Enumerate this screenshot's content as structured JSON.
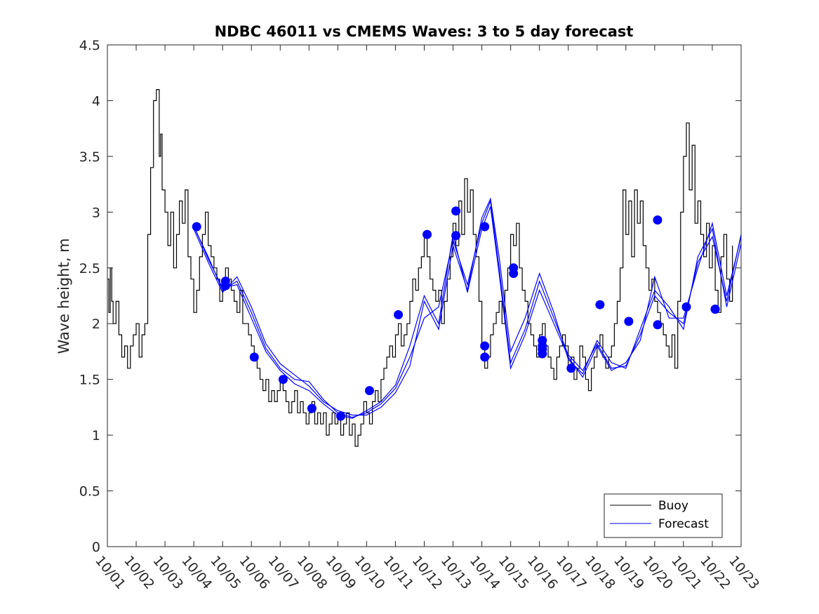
{
  "chart_data": {
    "type": "line",
    "title": "NDBC 46011 vs CMEMS Waves: 3 to 5 day forecast",
    "xlabel": "",
    "ylabel": "Wave height, m",
    "x_unit": "days since 10/01 00:00",
    "xlim": [
      0,
      22
    ],
    "ylim": [
      0,
      4.5
    ],
    "x_ticks": [
      0,
      1,
      2,
      3,
      4,
      5,
      6,
      7,
      8,
      9,
      10,
      11,
      12,
      13,
      14,
      15,
      16,
      17,
      18,
      19,
      20,
      21,
      22
    ],
    "x_tick_labels": [
      "10/01",
      "10/02",
      "10/03",
      "10/04",
      "10/05",
      "10/06",
      "10/07",
      "10/08",
      "10/09",
      "10/10",
      "10/11",
      "10/12",
      "10/13",
      "10/14",
      "10/15",
      "10/16",
      "10/17",
      "10/18",
      "10/19",
      "10/20",
      "10/21",
      "10/22",
      "10/23"
    ],
    "y_ticks": [
      0,
      0.5,
      1,
      1.5,
      2,
      2.5,
      3,
      3.5,
      4,
      4.5
    ],
    "y_tick_labels": [
      "0",
      "0.5",
      "1",
      "1.5",
      "2",
      "2.5",
      "3",
      "3.5",
      "4",
      "4.5"
    ],
    "grid": false,
    "legend": {
      "location": "bottom-right",
      "entries": [
        {
          "label": "Buoy",
          "color": "#000000"
        },
        {
          "label": "Forecast",
          "color": "#0000ff"
        }
      ]
    },
    "buoy": {
      "name": "Buoy",
      "color": "#000000",
      "x": [
        0,
        0.05,
        0.1,
        0.15,
        0.2,
        0.3,
        0.4,
        0.5,
        0.6,
        0.7,
        0.8,
        0.9,
        1.0,
        1.1,
        1.2,
        1.3,
        1.4,
        1.5,
        1.6,
        1.7,
        1.8,
        1.85,
        1.9,
        2.0,
        2.1,
        2.2,
        2.3,
        2.4,
        2.5,
        2.6,
        2.7,
        2.8,
        2.9,
        3.0,
        3.1,
        3.2,
        3.3,
        3.4,
        3.5,
        3.6,
        3.7,
        3.8,
        3.9,
        4.0,
        4.1,
        4.2,
        4.3,
        4.4,
        4.5,
        4.6,
        4.7,
        4.8,
        4.9,
        5.0,
        5.1,
        5.2,
        5.3,
        5.4,
        5.5,
        5.6,
        5.7,
        5.8,
        5.9,
        6.0,
        6.1,
        6.2,
        6.3,
        6.4,
        6.5,
        6.6,
        6.7,
        6.8,
        6.9,
        7.0,
        7.1,
        7.2,
        7.3,
        7.4,
        7.5,
        7.6,
        7.7,
        7.8,
        7.9,
        8.0,
        8.1,
        8.2,
        8.3,
        8.4,
        8.5,
        8.6,
        8.7,
        8.8,
        8.9,
        9.0,
        9.1,
        9.2,
        9.3,
        9.4,
        9.5,
        9.6,
        9.7,
        9.8,
        9.9,
        10.0,
        10.1,
        10.2,
        10.3,
        10.4,
        10.5,
        10.6,
        10.7,
        10.8,
        10.9,
        11.0,
        11.1,
        11.2,
        11.3,
        11.4,
        11.5,
        11.6,
        11.7,
        11.8,
        11.9,
        12.0,
        12.1,
        12.2,
        12.3,
        12.4,
        12.5,
        12.6,
        12.7,
        12.8,
        12.9,
        13.0,
        13.1,
        13.2,
        13.3,
        13.4,
        13.5,
        13.6,
        13.7,
        13.8,
        13.9,
        14.0,
        14.1,
        14.2,
        14.3,
        14.4,
        14.5,
        14.6,
        14.7,
        14.8,
        14.9,
        15.0,
        15.1,
        15.2,
        15.3,
        15.4,
        15.5,
        15.6,
        15.7,
        15.8,
        15.9,
        16.0,
        16.1,
        16.2,
        16.3,
        16.4,
        16.5,
        16.6,
        16.7,
        16.8,
        16.9,
        17.0,
        17.1,
        17.2,
        17.3,
        17.4,
        17.5,
        17.6,
        17.7,
        17.8,
        17.9,
        18.0,
        18.1,
        18.2,
        18.3,
        18.4,
        18.5,
        18.6,
        18.7,
        18.8,
        18.9,
        19.0,
        19.1,
        19.2,
        19.3,
        19.4,
        19.5,
        19.6,
        19.7,
        19.8,
        19.9,
        20.0,
        20.1,
        20.2,
        20.3,
        20.4,
        20.5,
        20.6,
        20.7,
        20.8,
        20.9,
        21.0,
        21.1,
        21.2,
        21.3,
        21.4,
        21.5,
        21.6,
        21.7
      ],
      "values": [
        2.4,
        2.1,
        2.5,
        2.2,
        2.0,
        2.2,
        1.9,
        1.7,
        1.8,
        1.6,
        1.8,
        1.9,
        2.0,
        1.7,
        1.9,
        2.0,
        2.8,
        3.4,
        4.0,
        4.1,
        3.5,
        3.7,
        3.2,
        3.0,
        2.7,
        3.0,
        2.5,
        2.8,
        3.1,
        2.9,
        3.2,
        2.6,
        2.4,
        2.1,
        2.3,
        2.6,
        2.8,
        3.0,
        2.7,
        2.6,
        2.5,
        2.4,
        2.2,
        2.3,
        2.5,
        2.4,
        2.3,
        2.2,
        2.1,
        2.3,
        2.0,
        2.0,
        1.9,
        1.8,
        1.7,
        1.6,
        1.5,
        1.4,
        1.5,
        1.3,
        1.4,
        1.3,
        1.4,
        1.5,
        1.4,
        1.3,
        1.2,
        1.3,
        1.4,
        1.2,
        1.3,
        1.2,
        1.1,
        1.2,
        1.3,
        1.1,
        1.2,
        1.1,
        1.2,
        1.0,
        1.1,
        1.2,
        1.1,
        1.2,
        1.0,
        1.1,
        1.2,
        1.0,
        1.1,
        0.9,
        1.0,
        1.1,
        1.3,
        1.2,
        1.1,
        1.3,
        1.4,
        1.3,
        1.5,
        1.6,
        1.7,
        1.8,
        1.7,
        1.9,
        2.0,
        1.8,
        1.9,
        2.0,
        2.2,
        2.4,
        2.3,
        2.5,
        2.6,
        2.8,
        2.6,
        2.4,
        2.3,
        2.2,
        2.3,
        2.0,
        2.2,
        2.4,
        2.6,
        2.9,
        2.7,
        3.1,
        2.8,
        3.3,
        3.0,
        3.2,
        2.8,
        2.6,
        2.2,
        1.8,
        1.6,
        1.7,
        1.9,
        2.0,
        2.1,
        2.2,
        2.0,
        2.3,
        2.5,
        2.8,
        2.7,
        2.9,
        2.5,
        2.3,
        2.2,
        2.0,
        1.9,
        1.8,
        1.7,
        1.9,
        2.0,
        1.8,
        1.7,
        1.6,
        1.5,
        1.7,
        1.8,
        1.9,
        1.8,
        1.6,
        1.7,
        1.5,
        1.6,
        1.8,
        1.7,
        1.5,
        1.4,
        1.6,
        1.7,
        1.8,
        1.9,
        1.7,
        1.6,
        1.7,
        1.8,
        2.0,
        2.2,
        2.5,
        3.2,
        2.8,
        3.1,
        2.6,
        3.2,
        2.9,
        3.1,
        2.7,
        2.5,
        2.3,
        2.4,
        2.2,
        2.1,
        2.0,
        1.9,
        1.8,
        1.7,
        1.9,
        1.6,
        2.2,
        3.0,
        3.5,
        3.8,
        3.2,
        3.6,
        2.9,
        3.1,
        2.8,
        2.6,
        2.9,
        2.5,
        2.7,
        2.3,
        2.1,
        2.6,
        2.8,
        2.4,
        2.2,
        2.7
      ]
    },
    "forecast_series": [
      {
        "name": "Forecast",
        "color": "#0000ff",
        "x": [
          3.0,
          3.5,
          4.0,
          4.5,
          5.0,
          5.5,
          6.0,
          6.5,
          7.0,
          7.5,
          8.0,
          8.5,
          9.0,
          9.5,
          10.0,
          10.5,
          11.0,
          11.5,
          12.0,
          12.5,
          13.0,
          13.3,
          13.6,
          14.0,
          14.5,
          15.0,
          15.5,
          16.0,
          16.5,
          17.0,
          17.5,
          18.0,
          18.5,
          19.0,
          19.5,
          20.0,
          20.5,
          21.0,
          21.5,
          22.0
        ],
        "values": [
          2.87,
          2.6,
          2.3,
          2.38,
          2.1,
          1.78,
          1.6,
          1.5,
          1.48,
          1.32,
          1.2,
          1.16,
          1.2,
          1.28,
          1.42,
          1.7,
          2.05,
          2.15,
          2.75,
          2.35,
          2.9,
          3.1,
          2.5,
          1.65,
          1.95,
          2.38,
          2.05,
          1.72,
          1.58,
          1.82,
          1.6,
          1.62,
          1.9,
          2.25,
          2.1,
          2.0,
          2.55,
          2.78,
          2.2,
          2.8
        ]
      },
      {
        "name": "Forecast",
        "color": "#0000ff",
        "x": [
          3.0,
          3.5,
          4.0,
          4.5,
          5.0,
          5.5,
          6.0,
          6.5,
          7.0,
          7.5,
          8.0,
          8.5,
          9.0,
          9.5,
          10.0,
          10.5,
          11.0,
          11.5,
          12.0,
          12.5,
          13.0,
          13.3,
          13.6,
          14.0,
          14.5,
          15.0,
          15.5,
          16.0,
          16.5,
          17.0,
          17.5,
          18.0,
          18.5,
          19.0,
          19.5,
          20.0,
          20.5,
          21.0,
          21.5,
          22.0
        ],
        "values": [
          2.85,
          2.55,
          2.28,
          2.42,
          2.15,
          1.82,
          1.64,
          1.54,
          1.44,
          1.3,
          1.22,
          1.18,
          1.18,
          1.25,
          1.38,
          1.62,
          2.2,
          1.95,
          2.7,
          2.3,
          2.95,
          3.12,
          2.6,
          1.75,
          2.05,
          2.45,
          2.1,
          1.68,
          1.55,
          1.85,
          1.65,
          1.6,
          1.95,
          2.3,
          2.15,
          1.95,
          2.6,
          2.85,
          2.15,
          2.72
        ]
      },
      {
        "name": "Forecast",
        "color": "#0000ff",
        "x": [
          3.0,
          3.5,
          4.0,
          4.5,
          5.0,
          5.5,
          6.0,
          6.5,
          7.0,
          7.5,
          8.0,
          8.5,
          9.0,
          9.5,
          10.0,
          10.5,
          11.0,
          11.5,
          12.0,
          12.5,
          13.0,
          13.3,
          13.6,
          14.0,
          14.5,
          15.0,
          15.5,
          16.0,
          16.5,
          17.0,
          17.5,
          18.0,
          18.5,
          19.0,
          19.5,
          20.0,
          20.5,
          21.0,
          21.5,
          22.0
        ],
        "values": [
          2.88,
          2.58,
          2.32,
          2.35,
          2.05,
          1.75,
          1.58,
          1.46,
          1.4,
          1.28,
          1.18,
          1.15,
          1.22,
          1.3,
          1.45,
          1.8,
          2.25,
          2.0,
          2.8,
          2.28,
          2.85,
          3.05,
          2.45,
          1.6,
          1.9,
          2.3,
          2.0,
          1.7,
          1.52,
          1.8,
          1.58,
          1.65,
          1.85,
          2.42,
          2.05,
          2.05,
          2.5,
          2.9,
          2.25,
          2.78
        ]
      }
    ],
    "forecast_points": {
      "name": "Forecast",
      "color": "#0000ff",
      "x": [
        3.1,
        4.1,
        4.1,
        5.1,
        6.1,
        7.1,
        8.1,
        9.1,
        10.1,
        11.1,
        12.1,
        12.1,
        13.1,
        13.1,
        13.1,
        14.1,
        14.1,
        15.1,
        15.1,
        15.1,
        15.1,
        16.1,
        17.1,
        18.1,
        19.1,
        19.1,
        20.1,
        21.1,
        21.1
      ],
      "values": [
        2.87,
        2.38,
        2.34,
        1.7,
        1.5,
        1.24,
        1.17,
        1.4,
        2.08,
        2.8,
        2.79,
        3.01,
        2.87,
        1.8,
        1.7,
        2.5,
        2.45,
        1.8,
        1.77,
        1.73,
        1.85,
        1.6,
        2.17,
        2.02,
        1.99,
        2.93,
        2.15,
        2.13,
        2.13
      ]
    }
  }
}
